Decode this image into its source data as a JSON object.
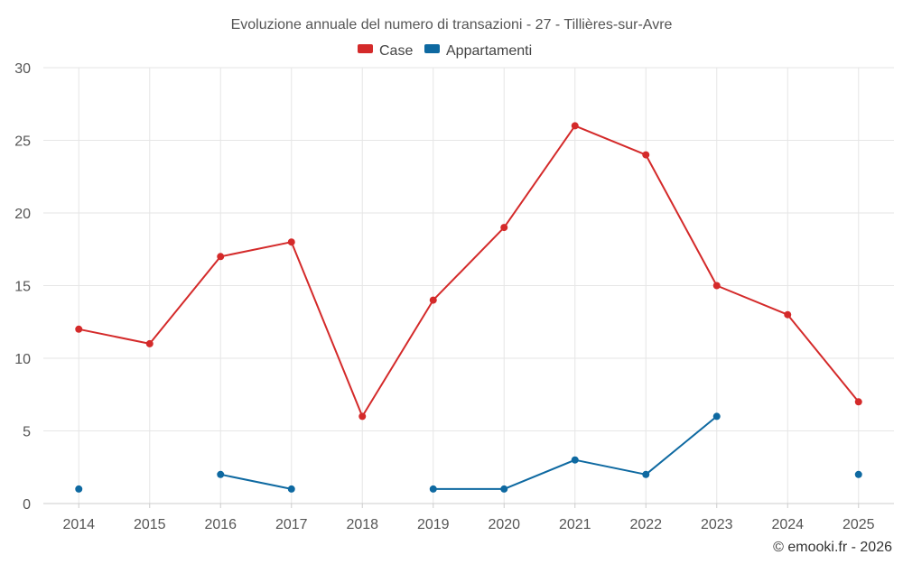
{
  "chart_data": {
    "type": "line",
    "title": "Evoluzione annuale del numero di transazioni - 27 - Tillières-sur-Avre",
    "categories": [
      "2014",
      "2015",
      "2016",
      "2017",
      "2018",
      "2019",
      "2020",
      "2021",
      "2022",
      "2023",
      "2024",
      "2025"
    ],
    "series": [
      {
        "name": "Case",
        "color": "#d42a2a",
        "values": [
          12,
          11,
          17,
          18,
          6,
          14,
          19,
          26,
          24,
          15,
          13,
          7
        ]
      },
      {
        "name": "Appartamenti",
        "color": "#0e69a1",
        "values": [
          1,
          null,
          2,
          1,
          null,
          1,
          1,
          3,
          2,
          6,
          null,
          2
        ]
      }
    ],
    "ylim": [
      0,
      30
    ],
    "yticks": [
      0,
      5,
      10,
      15,
      20,
      25,
      30
    ],
    "grid": true,
    "legend": "top-center",
    "xlabel": "",
    "ylabel": ""
  },
  "credit": "© emooki.fr - 2026"
}
